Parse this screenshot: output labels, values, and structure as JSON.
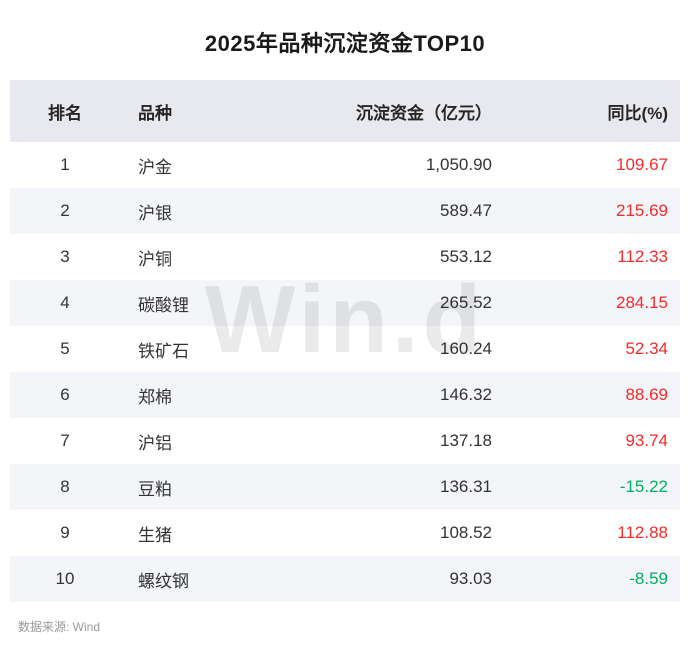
{
  "title": "2025年品种沉淀资金TOP10",
  "watermark": "Win.d",
  "source": "数据来源: Wind",
  "colors": {
    "up": "#f52b2b",
    "down": "#00b05e",
    "header_bg": "#e7e9ee",
    "row_alt_bg": "#f3f5f9"
  },
  "table": {
    "headers": [
      "排名",
      "品种",
      "沉淀资金（亿元）",
      "同比(%)"
    ],
    "rows": [
      {
        "rank": "1",
        "name": "沪金",
        "fund": "1,050.90",
        "yoy": "109.67",
        "trend": "up"
      },
      {
        "rank": "2",
        "name": "沪银",
        "fund": "589.47",
        "yoy": "215.69",
        "trend": "up"
      },
      {
        "rank": "3",
        "name": "沪铜",
        "fund": "553.12",
        "yoy": "112.33",
        "trend": "up"
      },
      {
        "rank": "4",
        "name": "碳酸锂",
        "fund": "265.52",
        "yoy": "284.15",
        "trend": "up"
      },
      {
        "rank": "5",
        "name": "铁矿石",
        "fund": "160.24",
        "yoy": "52.34",
        "trend": "up"
      },
      {
        "rank": "6",
        "name": "郑棉",
        "fund": "146.32",
        "yoy": "88.69",
        "trend": "up"
      },
      {
        "rank": "7",
        "name": "沪铝",
        "fund": "137.18",
        "yoy": "93.74",
        "trend": "up"
      },
      {
        "rank": "8",
        "name": "豆粕",
        "fund": "136.31",
        "yoy": "-15.22",
        "trend": "down"
      },
      {
        "rank": "9",
        "name": "生猪",
        "fund": "108.52",
        "yoy": "112.88",
        "trend": "up"
      },
      {
        "rank": "10",
        "name": "螺纹钢",
        "fund": "93.03",
        "yoy": "-8.59",
        "trend": "down"
      }
    ]
  },
  "chart_data": {
    "type": "table",
    "title": "2025年品种沉淀资金TOP10",
    "columns": [
      "排名",
      "品种",
      "沉淀资金（亿元）",
      "同比(%)"
    ],
    "rows": [
      [
        1,
        "沪金",
        1050.9,
        109.67
      ],
      [
        2,
        "沪银",
        589.47,
        215.69
      ],
      [
        3,
        "沪铜",
        553.12,
        112.33
      ],
      [
        4,
        "碳酸锂",
        265.52,
        284.15
      ],
      [
        5,
        "铁矿石",
        160.24,
        52.34
      ],
      [
        6,
        "郑棉",
        146.32,
        88.69
      ],
      [
        7,
        "沪铝",
        137.18,
        93.74
      ],
      [
        8,
        "豆粕",
        136.31,
        -15.22
      ],
      [
        9,
        "生猪",
        108.52,
        112.88
      ],
      [
        10,
        "螺纹钢",
        93.03,
        -8.59
      ]
    ],
    "source": "Wind"
  }
}
